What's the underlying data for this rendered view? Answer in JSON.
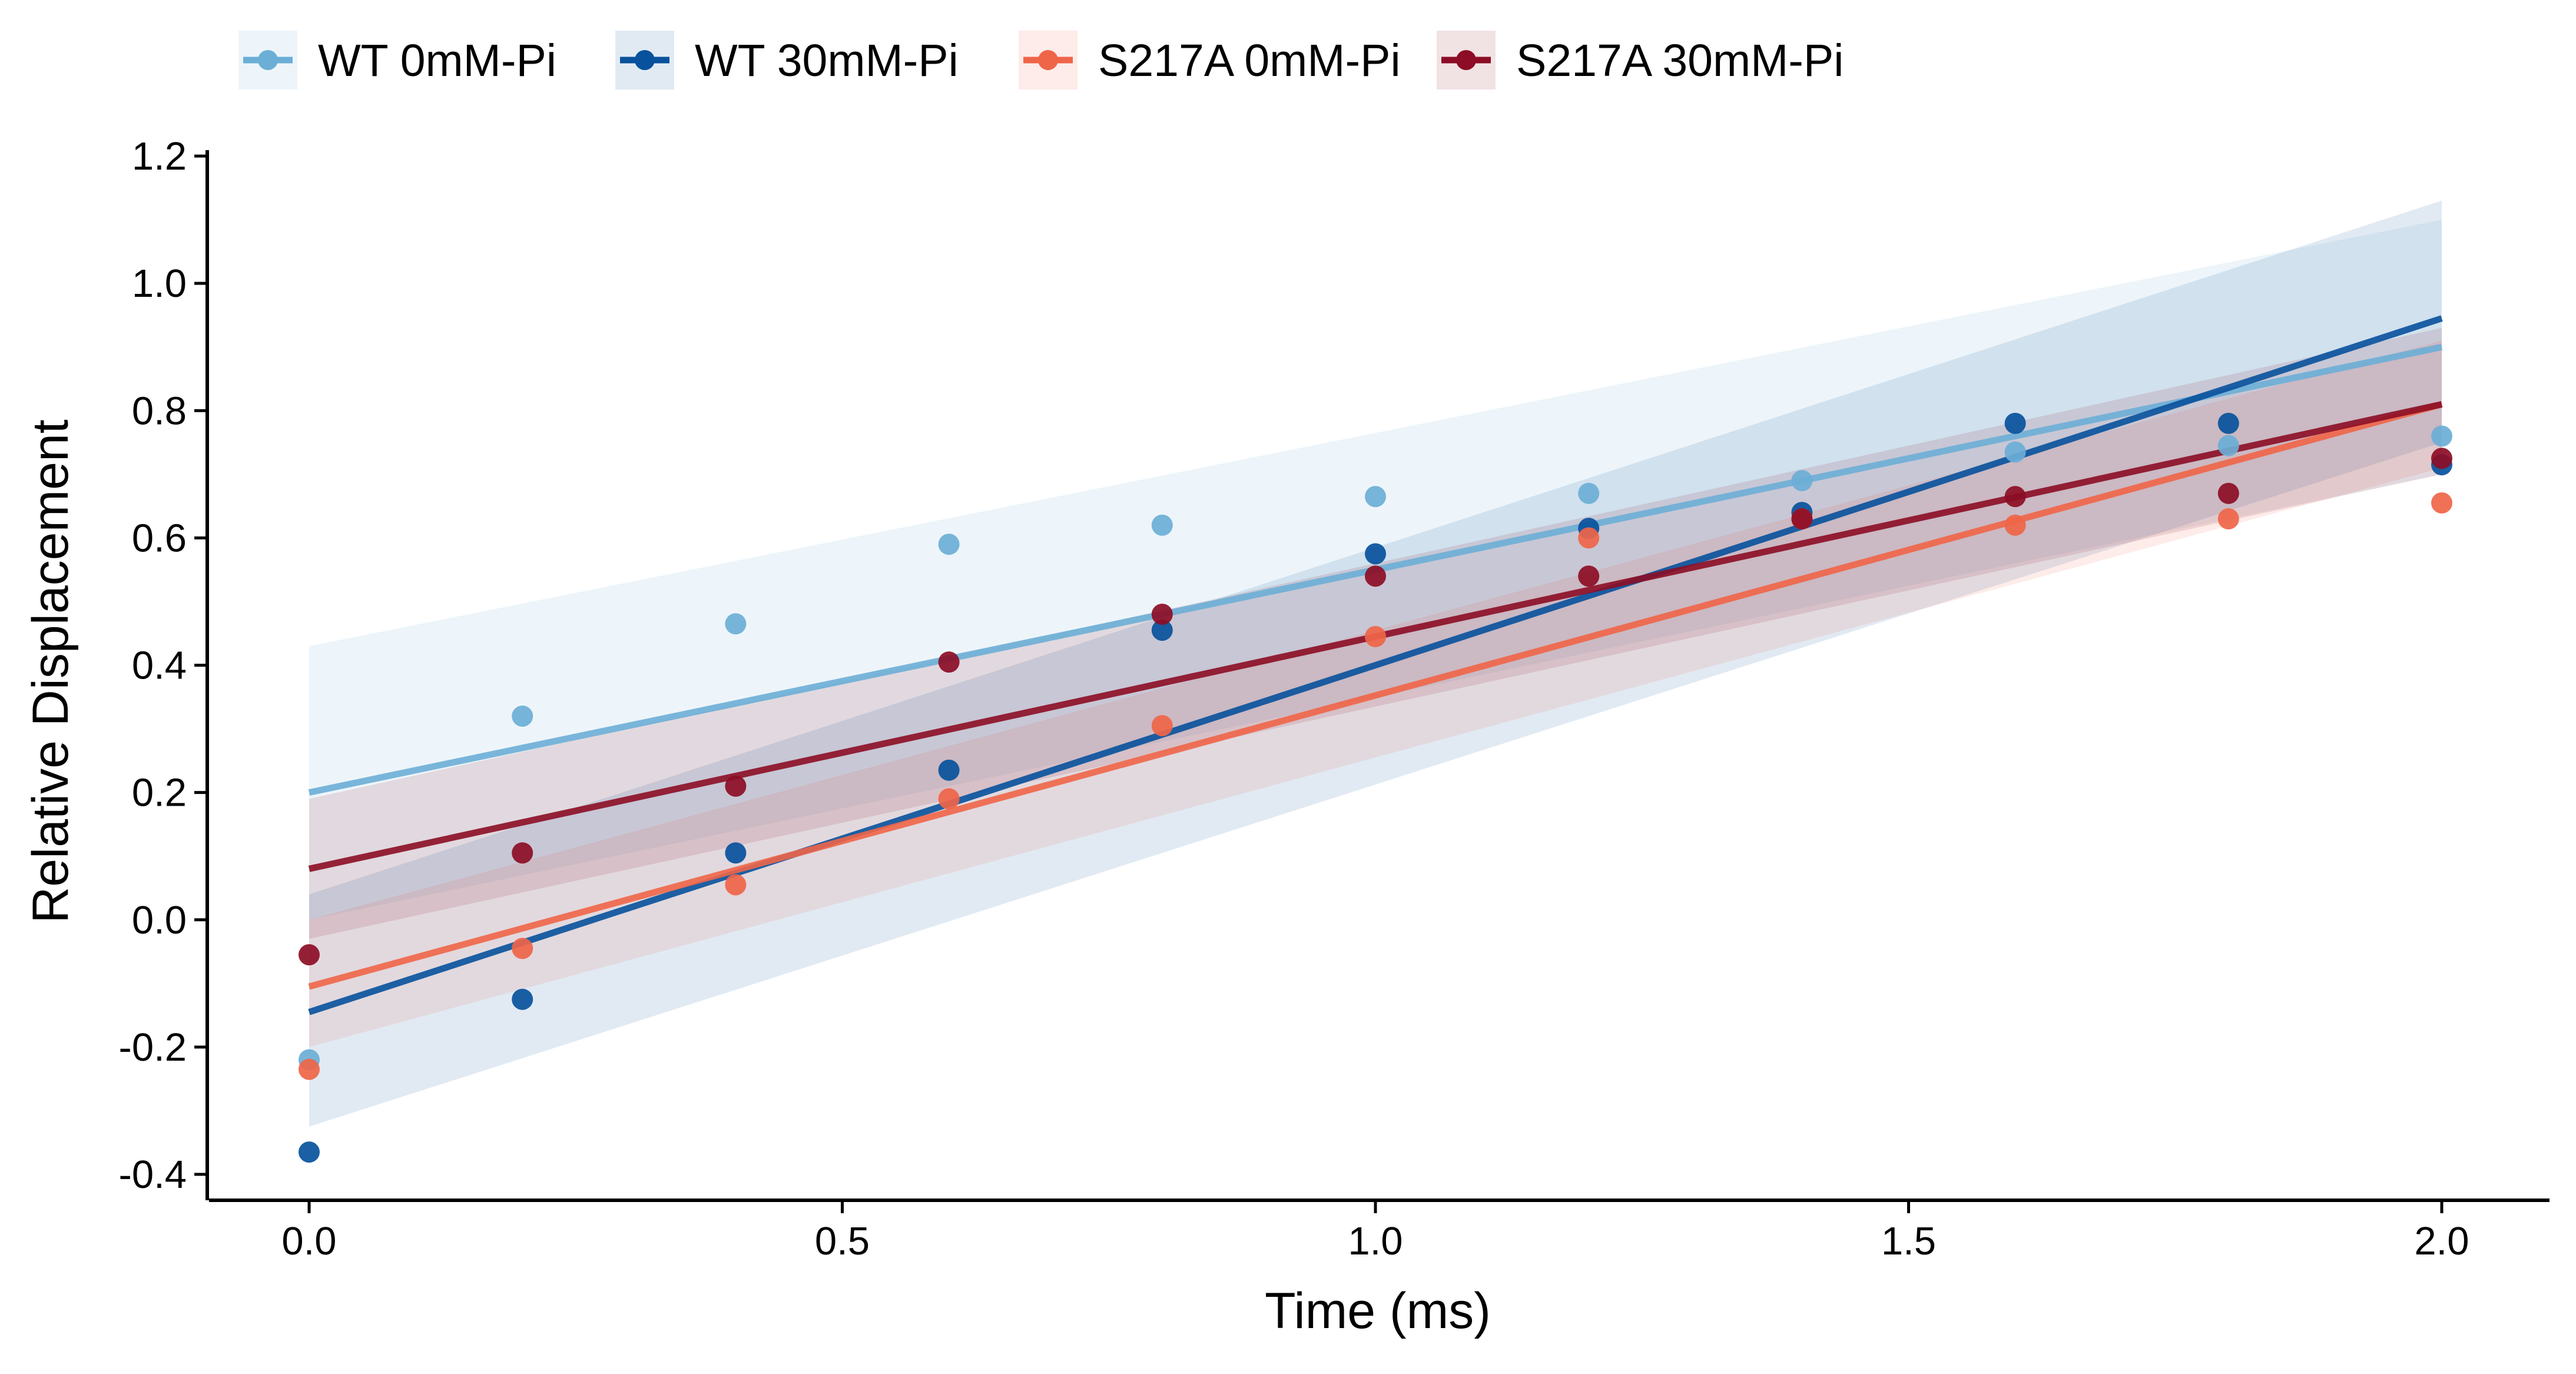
{
  "chart_data": {
    "type": "line",
    "title": "",
    "xlabel": "Time (ms)",
    "ylabel": "Relative Displacement",
    "xlim": [
      -0.1,
      2.1
    ],
    "ylim": [
      -0.43,
      1.22
    ],
    "xticks": [
      0.0,
      0.5,
      1.0,
      1.5,
      2.0
    ],
    "xtick_labels": [
      "0.0",
      "0.5",
      "1.0",
      "1.5",
      "2.0"
    ],
    "yticks": [
      -0.4,
      -0.2,
      0.0,
      0.2,
      0.4,
      0.6,
      0.8,
      1.0,
      1.2
    ],
    "ytick_labels": [
      "-0.4",
      "-0.2",
      "0.0",
      "0.2",
      "0.4",
      "0.6",
      "0.8",
      "1.0",
      "1.2"
    ],
    "grid": false,
    "legend_position": "top",
    "x": [
      0.0,
      0.2,
      0.4,
      0.6,
      0.8,
      1.0,
      1.2,
      1.4,
      1.6,
      1.8,
      2.0
    ],
    "series": [
      {
        "name": "WT 0mM-Pi",
        "color": "#6baed6",
        "points": [
          -0.22,
          0.32,
          0.465,
          0.59,
          0.62,
          0.665,
          0.67,
          0.69,
          0.735,
          0.745,
          0.76
        ],
        "fit": [
          0.2,
          0.9
        ],
        "band_lower": [
          0.0,
          0.7
        ],
        "band_upper": [
          0.43,
          1.1
        ]
      },
      {
        "name": "WT 30mM-Pi",
        "color": "#08519c",
        "points": [
          -0.365,
          -0.125,
          0.105,
          0.235,
          0.455,
          0.575,
          0.615,
          0.64,
          0.78,
          0.78,
          0.715
        ],
        "fit": [
          -0.145,
          0.945
        ],
        "band_lower": [
          -0.325,
          0.75
        ],
        "band_upper": [
          0.04,
          1.13
        ]
      },
      {
        "name": "S217A 0mM-Pi",
        "color": "#ef6548",
        "points": [
          -0.235,
          -0.045,
          0.055,
          0.19,
          0.305,
          0.445,
          0.6,
          0.63,
          0.62,
          0.63,
          0.655
        ],
        "fit": [
          -0.105,
          0.81
        ],
        "band_lower": [
          -0.2,
          0.71
        ],
        "band_upper": [
          0.0,
          0.91
        ]
      },
      {
        "name": "S217A 30mM-Pi",
        "color": "#8c0d25",
        "points": [
          -0.055,
          0.105,
          0.21,
          0.405,
          0.48,
          0.54,
          0.54,
          0.63,
          0.665,
          0.67,
          0.725
        ],
        "fit": [
          0.08,
          0.81
        ],
        "band_lower": [
          -0.03,
          0.7
        ],
        "band_upper": [
          0.19,
          0.93
        ]
      }
    ]
  }
}
